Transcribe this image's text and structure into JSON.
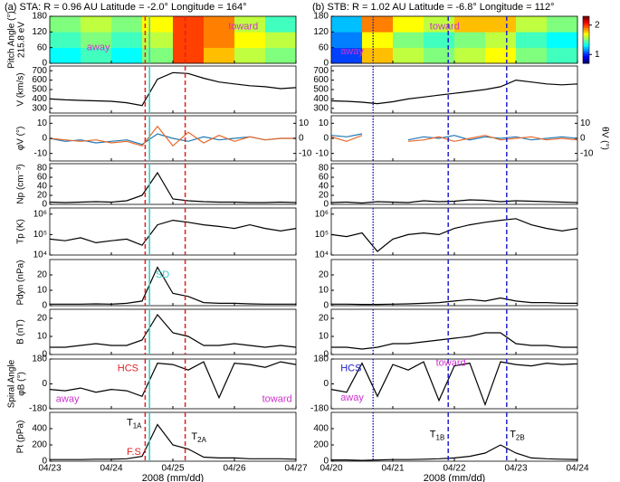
{
  "chart_data": [
    {
      "type": "multipanel",
      "title": "(a) STA:  R = 0.96 AU    Latitude = -2.0°    Longitude = 164°",
      "xlabel": "2008 (mm/dd)",
      "xlim": [
        0,
        4
      ],
      "xticks": [
        {
          "value": 0,
          "label": "04/23"
        },
        {
          "value": 1,
          "label": "04/24"
        },
        {
          "value": 2,
          "label": "04/25"
        },
        {
          "value": 3,
          "label": "04/26"
        },
        {
          "value": 4,
          "label": "04/27"
        }
      ],
      "x": [
        0,
        0.25,
        0.5,
        0.75,
        1,
        1.25,
        1.5,
        1.75,
        2,
        2.25,
        2.5,
        2.75,
        3,
        3.25,
        3.5,
        3.75,
        4
      ],
      "vlines": [
        {
          "x": 1.55,
          "color": "#dd2222",
          "style": "dashed"
        },
        {
          "x": 1.62,
          "color": "#33cccc",
          "style": "solid"
        },
        {
          "x": 2.2,
          "color": "#dd2222",
          "style": "dashed"
        }
      ],
      "panels": [
        {
          "type": "heatmap",
          "ylabel": "Pitch Angle (°)",
          "ylabel2": "215.8 eV",
          "ylim": [
            0,
            180
          ],
          "yticks": [
            0,
            60,
            120,
            180
          ],
          "xbins": [
            0,
            0.5,
            1,
            1.5,
            2,
            2.5,
            3,
            3.5,
            4
          ],
          "ybins": [
            0,
            60,
            120,
            180
          ],
          "clim": [
            0.7,
            2.3
          ],
          "z": [
            [
              1.3,
              1.4,
              1.3,
              1.5,
              2.0,
              1.8,
              1.6,
              1.5
            ],
            [
              1.4,
              1.5,
              1.4,
              1.6,
              2.0,
              1.9,
              1.7,
              1.6
            ],
            [
              1.5,
              1.6,
              1.5,
              1.7,
              2.0,
              1.9,
              1.6,
              1.4
            ]
          ],
          "annotations": [
            {
              "text": "away",
              "color": "#cc33cc"
            },
            {
              "text": "toward",
              "color": "#cc33cc"
            }
          ]
        },
        {
          "type": "line",
          "ylabel": "V (km/s)",
          "ylim": [
            250,
            750
          ],
          "yticks": [
            300,
            400,
            500,
            600,
            700
          ],
          "series": [
            {
              "color": "#000000",
              "values": [
                400,
                390,
                385,
                380,
                375,
                360,
                330,
                610,
                680,
                670,
                620,
                580,
                560,
                540,
                530,
                510,
                520
              ]
            }
          ]
        },
        {
          "type": "line",
          "ylabel": "φV (°)",
          "ylabel_color": "#1f77b4",
          "ylim": [
            -15,
            15
          ],
          "yticks": [
            -10,
            0,
            10
          ],
          "y2lim": [
            -15,
            15
          ],
          "y2ticks": [
            -10,
            0,
            10
          ],
          "series": [
            {
              "color": "#1f77b4",
              "values": [
                0,
                -2,
                -1,
                -3,
                -2,
                -1,
                -4,
                3,
                0,
                -2,
                1,
                -1,
                0,
                1,
                -1,
                0,
                0
              ]
            },
            {
              "color": "#e8682a",
              "axis": "y2",
              "values": [
                0,
                -1,
                -2,
                -1,
                -3,
                -2,
                -5,
                8,
                -5,
                4,
                -3,
                2,
                -2,
                1,
                -1,
                0,
                0
              ]
            }
          ]
        },
        {
          "type": "line",
          "ylabel": "Np (cm⁻³)",
          "ylim": [
            0,
            90
          ],
          "yticks": [
            0,
            20,
            40,
            60,
            80
          ],
          "series": [
            {
              "color": "#000000",
              "values": [
                5,
                4,
                5,
                6,
                5,
                8,
                20,
                70,
                12,
                8,
                6,
                5,
                5,
                4,
                4,
                5,
                4
              ]
            }
          ]
        },
        {
          "type": "line",
          "ylabel": "Tp (K)",
          "log": true,
          "ylim": [
            10000,
            2000000
          ],
          "yticks": [
            {
              "value": 10000,
              "label": "10⁴"
            },
            {
              "value": 100000,
              "label": "10⁵"
            },
            {
              "value": 1000000,
              "label": "10⁶"
            }
          ],
          "series": [
            {
              "color": "#000000",
              "values": [
                60000,
                50000,
                70000,
                40000,
                50000,
                60000,
                30000,
                300000,
                500000,
                400000,
                300000,
                250000,
                200000,
                300000,
                200000,
                150000,
                200000
              ]
            }
          ]
        },
        {
          "type": "line",
          "ylabel": "Pdyn (nPa)",
          "ylim": [
            0,
            30
          ],
          "yticks": [
            0,
            10,
            20
          ],
          "series": [
            {
              "color": "#000000",
              "values": [
                1,
                1,
                1,
                1.2,
                1,
                1.5,
                3,
                25,
                8,
                6,
                2,
                1.5,
                1.5,
                1.2,
                1,
                1,
                1
              ]
            }
          ],
          "annotations": [
            {
              "text": "SD",
              "color": "#33cccc"
            }
          ]
        },
        {
          "type": "line",
          "ylabel": "B (nT)",
          "ylim": [
            0,
            25
          ],
          "yticks": [
            0,
            10,
            20
          ],
          "series": [
            {
              "color": "#000000",
              "values": [
                4,
                4,
                5,
                6,
                5,
                5,
                8,
                22,
                12,
                10,
                5,
                5,
                6,
                5,
                4,
                5,
                4
              ]
            }
          ]
        },
        {
          "type": "line",
          "ylabel": "Spiral Angle",
          "ylabel2": "φB (°)",
          "ylim": [
            -180,
            180
          ],
          "yticks": [
            -180,
            0,
            180
          ],
          "series": [
            {
              "color": "#000000",
              "values": [
                -40,
                -50,
                -30,
                -60,
                -40,
                -50,
                -90,
                150,
                140,
                100,
                160,
                -100,
                150,
                140,
                120,
                160,
                140
              ]
            }
          ],
          "annotations": [
            {
              "text": "HCS",
              "color": "#dd2222"
            },
            {
              "text": "away",
              "color": "#cc33cc"
            },
            {
              "text": "toward",
              "color": "#cc33cc"
            }
          ]
        },
        {
          "type": "line",
          "ylabel": "Pt (pPa)",
          "ylim": [
            0,
            600
          ],
          "yticks": [
            0,
            200,
            400
          ],
          "series": [
            {
              "color": "#000000",
              "values": [
                20,
                20,
                20,
                25,
                25,
                30,
                60,
                450,
                200,
                150,
                50,
                40,
                40,
                30,
                30,
                30,
                25
              ]
            }
          ],
          "annotations": [
            {
              "text": "T",
              "sub": "1A",
              "color": "#000000"
            },
            {
              "text": "F.S.",
              "color": "#dd2222"
            },
            {
              "text": "T",
              "sub": "2A",
              "color": "#000000"
            }
          ]
        }
      ]
    },
    {
      "type": "multipanel",
      "title": "(b) STB:  R = 1.02 AU    Latitude = -6.8°    Longitude = 112°",
      "xlabel": "2008 (mm/dd)",
      "xlim": [
        0,
        4
      ],
      "xticks": [
        {
          "value": 0,
          "label": "04/20"
        },
        {
          "value": 1,
          "label": "04/21"
        },
        {
          "value": 2,
          "label": "04/22"
        },
        {
          "value": 3,
          "label": "04/23"
        },
        {
          "value": 4,
          "label": "04/24"
        }
      ],
      "x": [
        0,
        0.25,
        0.5,
        0.75,
        1,
        1.25,
        1.5,
        1.75,
        2,
        2.25,
        2.5,
        2.75,
        3,
        3.25,
        3.5,
        3.75,
        4
      ],
      "vlines": [
        {
          "x": 0.68,
          "color": "#2222cc",
          "style": "dotted"
        },
        {
          "x": 1.9,
          "color": "#2222cc",
          "style": "dashed"
        },
        {
          "x": 2.85,
          "color": "#2222cc",
          "style": "dashed"
        }
      ],
      "panels": [
        {
          "type": "heatmap",
          "ylim": [
            0,
            180
          ],
          "yticks": [
            0,
            60,
            120,
            180
          ],
          "xbins": [
            0,
            0.5,
            1,
            1.5,
            2,
            2.5,
            3,
            3.5,
            4
          ],
          "ybins": [
            0,
            60,
            120,
            180
          ],
          "clim": [
            0.7,
            2.3
          ],
          "colorbar": true,
          "cticks": [
            1,
            2
          ],
          "z": [
            [
              1.0,
              1.8,
              1.6,
              1.5,
              1.6,
              1.7,
              1.5,
              1.4
            ],
            [
              1.1,
              1.7,
              1.5,
              1.4,
              1.5,
              1.6,
              1.4,
              1.3
            ],
            [
              1.2,
              1.9,
              1.7,
              1.6,
              1.8,
              1.8,
              1.6,
              1.5
            ]
          ],
          "annotations": [
            {
              "text": "away",
              "color": "#cc33cc"
            },
            {
              "text": "toward",
              "color": "#cc33cc"
            }
          ]
        },
        {
          "type": "line",
          "ylim": [
            250,
            750
          ],
          "yticks": [
            300,
            400,
            500,
            600,
            700
          ],
          "series": [
            {
              "color": "#000000",
              "values": [
                380,
                375,
                365,
                350,
                370,
                400,
                420,
                440,
                460,
                480,
                500,
                530,
                600,
                580,
                560,
                550,
                560
              ]
            }
          ]
        },
        {
          "type": "line",
          "y2label": "θV (°)",
          "y2label_color": "#e8682a",
          "ylim": [
            -15,
            15
          ],
          "yticks": [
            -10,
            0,
            10
          ],
          "y2lim": [
            -15,
            15
          ],
          "y2ticks": [
            -10,
            0,
            10
          ],
          "series": [
            {
              "color": "#1f77b4",
              "values": [
                2,
                1,
                3,
                null,
                null,
                -1,
                1,
                0,
                2,
                -1,
                1,
                0,
                1,
                -1,
                0,
                1,
                0
              ]
            },
            {
              "color": "#e8682a",
              "axis": "y2",
              "values": [
                1,
                -2,
                2,
                null,
                null,
                -2,
                -1,
                1,
                -2,
                0,
                2,
                -1,
                0,
                1,
                -1,
                0,
                -1
              ]
            }
          ]
        },
        {
          "type": "line",
          "ylim": [
            0,
            90
          ],
          "yticks": [
            0,
            20,
            40,
            60,
            80
          ],
          "series": [
            {
              "color": "#000000",
              "values": [
                4,
                5,
                3,
                6,
                5,
                4,
                8,
                6,
                7,
                10,
                9,
                6,
                8,
                7,
                6,
                5,
                4
              ]
            }
          ]
        },
        {
          "type": "line",
          "log": true,
          "ylim": [
            10000,
            2000000
          ],
          "yticks": [
            {
              "value": 10000,
              "label": "10⁴"
            },
            {
              "value": 100000,
              "label": "10⁵"
            },
            {
              "value": 1000000,
              "label": "10⁶"
            }
          ],
          "series": [
            {
              "color": "#000000",
              "values": [
                100000,
                80000,
                120000,
                15000,
                60000,
                100000,
                120000,
                100000,
                200000,
                300000,
                400000,
                500000,
                600000,
                300000,
                200000,
                150000,
                200000
              ]
            }
          ]
        },
        {
          "type": "line",
          "ylim": [
            0,
            30
          ],
          "yticks": [
            0,
            10,
            20
          ],
          "series": [
            {
              "color": "#000000",
              "values": [
                1,
                1,
                0.8,
                0.8,
                1,
                1.2,
                1.5,
                2,
                3,
                4,
                3,
                5,
                3,
                2,
                2,
                1.5,
                1.5
              ]
            }
          ]
        },
        {
          "type": "line",
          "ylim": [
            0,
            25
          ],
          "yticks": [
            0,
            10,
            20
          ],
          "series": [
            {
              "color": "#000000",
              "values": [
                4,
                4,
                3,
                4,
                6,
                6,
                7,
                8,
                9,
                10,
                12,
                12,
                6,
                5,
                5,
                4,
                4
              ]
            }
          ]
        },
        {
          "type": "line",
          "ylim": [
            -180,
            180
          ],
          "yticks": [
            -180,
            0,
            180
          ],
          "series": [
            {
              "color": "#000000",
              "values": [
                -40,
                -60,
                150,
                -90,
                140,
                100,
                160,
                -120,
                130,
                150,
                -150,
                160,
                140,
                130,
                150,
                140,
                145
              ]
            }
          ],
          "annotations": [
            {
              "text": "HCS",
              "color": "#2222cc"
            },
            {
              "text": "toward",
              "color": "#cc33cc"
            },
            {
              "text": "away",
              "color": "#cc33cc"
            }
          ]
        },
        {
          "type": "line",
          "ylim": [
            0,
            600
          ],
          "yticks": [
            0,
            200,
            400
          ],
          "series": [
            {
              "color": "#000000",
              "values": [
                15,
                15,
                10,
                15,
                20,
                20,
                25,
                30,
                40,
                60,
                100,
                200,
                100,
                40,
                30,
                25,
                20
              ]
            }
          ],
          "annotations": [
            {
              "text": "T",
              "sub": "1B",
              "color": "#000000"
            },
            {
              "text": "T",
              "sub": "2B",
              "color": "#000000"
            }
          ]
        }
      ]
    }
  ]
}
